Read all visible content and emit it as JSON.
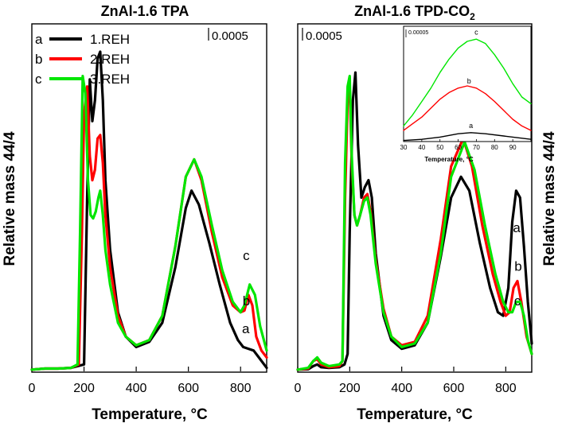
{
  "chart_data": [
    {
      "type": "line",
      "title": "ZnAl-1.6  TPA",
      "xlabel": "Temperature, °C",
      "ylabel": "Relative mass 44/4",
      "xlim": [
        0,
        900
      ],
      "ylim": [
        0,
        1
      ],
      "xticks": [
        0,
        200,
        400,
        600,
        800
      ],
      "scale_bar": "0.0005",
      "legend": [
        {
          "letter": "a",
          "label": "1.REH",
          "color": "#000000"
        },
        {
          "letter": "b",
          "label": "2.REH",
          "color": "#ff0000"
        },
        {
          "letter": "c",
          "label": "3.REH",
          "color": "#00e600"
        }
      ],
      "annotations": [
        {
          "text": "a",
          "x": 820,
          "y": 0.11
        },
        {
          "text": "b",
          "x": 822,
          "y": 0.19
        },
        {
          "text": "c",
          "x": 822,
          "y": 0.32
        }
      ],
      "series": [
        {
          "name": "1.REH",
          "color": "#000000",
          "x": [
            0,
            50,
            100,
            150,
            200,
            212,
            222,
            232,
            242,
            252,
            262,
            272,
            282,
            300,
            330,
            360,
            400,
            450,
            500,
            550,
            590,
            612,
            640,
            680,
            720,
            760,
            790,
            810,
            830,
            850,
            870,
            900
          ],
          "y": [
            0.005,
            0.008,
            0.008,
            0.01,
            0.02,
            0.5,
            0.84,
            0.72,
            0.78,
            0.9,
            0.92,
            0.78,
            0.55,
            0.35,
            0.17,
            0.1,
            0.07,
            0.085,
            0.14,
            0.3,
            0.47,
            0.52,
            0.48,
            0.37,
            0.25,
            0.14,
            0.09,
            0.07,
            0.065,
            0.06,
            0.04,
            0.01
          ]
        },
        {
          "name": "2.REH",
          "color": "#ff0000",
          "x": [
            0,
            50,
            100,
            150,
            180,
            192,
            200,
            212,
            222,
            232,
            242,
            252,
            262,
            272,
            282,
            300,
            330,
            360,
            400,
            450,
            500,
            550,
            590,
            622,
            650,
            690,
            730,
            770,
            800,
            815,
            830,
            845,
            860,
            880,
            900
          ],
          "y": [
            0.005,
            0.008,
            0.008,
            0.01,
            0.02,
            0.4,
            0.74,
            0.82,
            0.62,
            0.55,
            0.58,
            0.67,
            0.68,
            0.6,
            0.45,
            0.3,
            0.16,
            0.1,
            0.075,
            0.09,
            0.16,
            0.36,
            0.56,
            0.61,
            0.55,
            0.4,
            0.27,
            0.19,
            0.17,
            0.175,
            0.22,
            0.19,
            0.1,
            0.06,
            0.04
          ]
        },
        {
          "name": "3.REH",
          "color": "#00e600",
          "x": [
            0,
            50,
            100,
            150,
            175,
            185,
            195,
            205,
            215,
            225,
            235,
            245,
            255,
            262,
            272,
            282,
            300,
            330,
            360,
            400,
            450,
            500,
            550,
            590,
            622,
            650,
            690,
            730,
            770,
            800,
            815,
            835,
            855,
            875,
            900
          ],
          "y": [
            0.005,
            0.008,
            0.008,
            0.01,
            0.02,
            0.4,
            0.85,
            0.8,
            0.55,
            0.45,
            0.44,
            0.46,
            0.5,
            0.52,
            0.45,
            0.35,
            0.25,
            0.14,
            0.1,
            0.075,
            0.09,
            0.16,
            0.36,
            0.56,
            0.61,
            0.56,
            0.42,
            0.29,
            0.2,
            0.17,
            0.19,
            0.25,
            0.22,
            0.13,
            0.06
          ]
        }
      ]
    },
    {
      "type": "line",
      "title": "ZnAl-1.6  TPD-CO",
      "title_subscript": "2",
      "xlabel": "Temperature, °C",
      "ylabel": "Relative mass 44/4",
      "xlim": [
        0,
        900
      ],
      "ylim": [
        0,
        1
      ],
      "xticks": [
        0,
        200,
        400,
        600,
        800
      ],
      "scale_bar": "0.0005",
      "annotations": [
        {
          "text": "a",
          "x": 842,
          "y": 0.4
        },
        {
          "text": "b",
          "x": 848,
          "y": 0.29
        },
        {
          "text": "c",
          "x": 845,
          "y": 0.19
        }
      ],
      "series": [
        {
          "name": "a",
          "color": "#000000",
          "x": [
            0,
            40,
            60,
            75,
            90,
            120,
            160,
            180,
            192,
            200,
            212,
            222,
            232,
            245,
            258,
            272,
            285,
            300,
            330,
            360,
            400,
            450,
            500,
            550,
            590,
            628,
            660,
            700,
            740,
            770,
            790,
            810,
            825,
            840,
            855,
            870,
            885,
            900
          ],
          "y": [
            0.005,
            0.006,
            0.015,
            0.02,
            0.012,
            0.01,
            0.012,
            0.02,
            0.05,
            0.4,
            0.78,
            0.86,
            0.65,
            0.5,
            0.53,
            0.55,
            0.5,
            0.34,
            0.16,
            0.09,
            0.065,
            0.075,
            0.14,
            0.33,
            0.5,
            0.56,
            0.52,
            0.37,
            0.24,
            0.17,
            0.16,
            0.24,
            0.43,
            0.52,
            0.5,
            0.36,
            0.2,
            0.08
          ]
        },
        {
          "name": "b",
          "color": "#ff0000",
          "x": [
            0,
            40,
            60,
            75,
            90,
            120,
            160,
            172,
            182,
            192,
            200,
            208,
            218,
            228,
            240,
            255,
            268,
            280,
            300,
            330,
            360,
            400,
            450,
            500,
            550,
            590,
            636,
            670,
            710,
            750,
            780,
            800,
            815,
            830,
            845,
            860,
            880,
            900
          ],
          "y": [
            0.005,
            0.008,
            0.03,
            0.035,
            0.02,
            0.012,
            0.015,
            0.03,
            0.5,
            0.78,
            0.82,
            0.6,
            0.45,
            0.42,
            0.45,
            0.5,
            0.51,
            0.46,
            0.32,
            0.18,
            0.1,
            0.075,
            0.085,
            0.16,
            0.38,
            0.59,
            0.67,
            0.59,
            0.42,
            0.28,
            0.2,
            0.16,
            0.17,
            0.24,
            0.26,
            0.2,
            0.1,
            0.05
          ]
        },
        {
          "name": "c",
          "color": "#00e600",
          "x": [
            0,
            40,
            60,
            75,
            90,
            120,
            160,
            172,
            182,
            192,
            200,
            208,
            218,
            228,
            240,
            255,
            268,
            280,
            300,
            330,
            360,
            400,
            450,
            500,
            550,
            590,
            642,
            680,
            720,
            760,
            790,
            810,
            825,
            840,
            855,
            870,
            885,
            900
          ],
          "y": [
            0.005,
            0.01,
            0.03,
            0.04,
            0.025,
            0.015,
            0.02,
            0.03,
            0.6,
            0.82,
            0.85,
            0.62,
            0.45,
            0.42,
            0.45,
            0.49,
            0.5,
            0.45,
            0.31,
            0.17,
            0.1,
            0.07,
            0.08,
            0.14,
            0.34,
            0.56,
            0.66,
            0.58,
            0.42,
            0.28,
            0.2,
            0.17,
            0.17,
            0.2,
            0.2,
            0.16,
            0.09,
            0.05
          ]
        }
      ],
      "inset": {
        "type": "line",
        "xlabel": "Temperature, °C",
        "xlim": [
          30,
          100
        ],
        "ylim": [
          0,
          1
        ],
        "xticks": [
          30,
          40,
          50,
          60,
          70,
          80,
          90
        ],
        "scale_bar": "0.00005",
        "annotations": [
          {
            "text": "a",
            "x": 67,
            "y": 0.12
          },
          {
            "text": "b",
            "x": 66,
            "y": 0.52
          },
          {
            "text": "c",
            "x": 70,
            "y": 0.96
          }
        ],
        "series": [
          {
            "name": "a",
            "color": "#000000",
            "x": [
              30,
              40,
              50,
              60,
              67,
              75,
              85,
              95,
              100
            ],
            "y": [
              0.01,
              0.02,
              0.04,
              0.07,
              0.08,
              0.07,
              0.05,
              0.03,
              0.02
            ]
          },
          {
            "name": "b",
            "color": "#ff0000",
            "x": [
              30,
              35,
              40,
              45,
              50,
              55,
              60,
              65,
              70,
              75,
              80,
              85,
              90,
              95,
              100
            ],
            "y": [
              0.1,
              0.16,
              0.22,
              0.3,
              0.38,
              0.44,
              0.48,
              0.5,
              0.48,
              0.43,
              0.36,
              0.28,
              0.2,
              0.14,
              0.1
            ]
          },
          {
            "name": "c",
            "color": "#00e600",
            "x": [
              30,
              35,
              40,
              45,
              50,
              55,
              60,
              65,
              70,
              75,
              80,
              85,
              90,
              95,
              100
            ],
            "y": [
              0.14,
              0.24,
              0.36,
              0.48,
              0.62,
              0.74,
              0.84,
              0.9,
              0.92,
              0.88,
              0.78,
              0.66,
              0.52,
              0.4,
              0.34
            ]
          }
        ]
      }
    }
  ]
}
